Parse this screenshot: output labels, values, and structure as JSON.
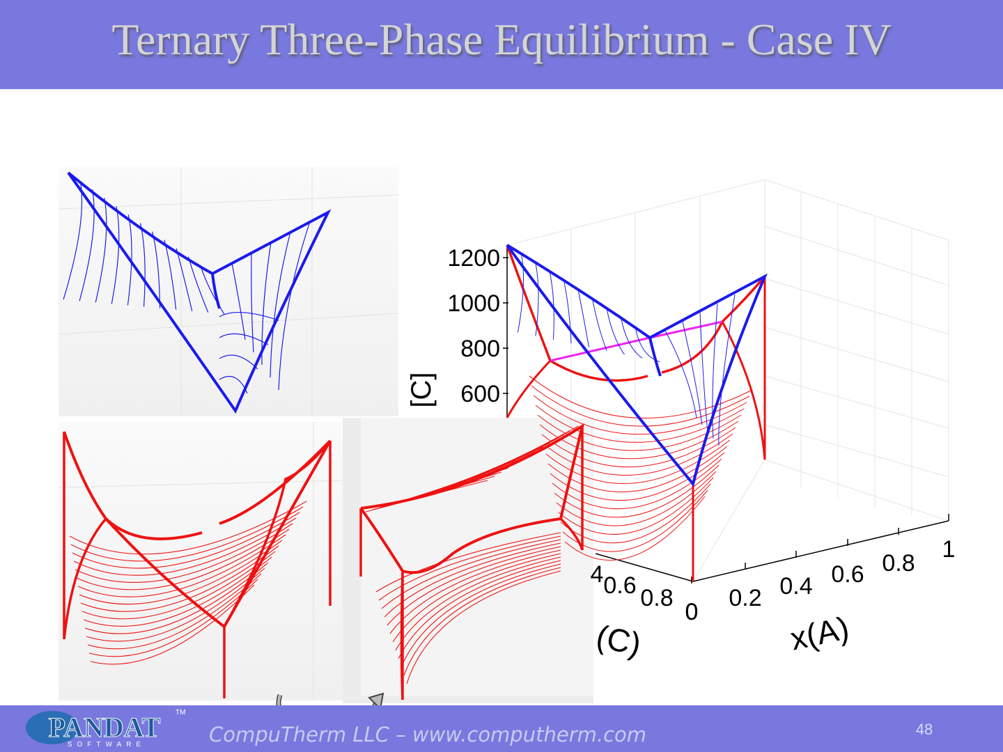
{
  "header": {
    "title": "Ternary Three-Phase Equilibrium - Case IV"
  },
  "figure": {
    "y_axis": {
      "label": "[C]",
      "ticks": [
        "1200",
        "1000",
        "800",
        "600"
      ]
    },
    "x_a_axis": {
      "label": "x(A)",
      "ticks": [
        "0",
        "0.2",
        "0.4",
        "0.6",
        "0.8",
        "1"
      ]
    },
    "x_c_axis": {
      "label": "(C)",
      "ticks": [
        "4",
        "0.6",
        "0.8",
        "0"
      ]
    }
  },
  "footer": {
    "logo": "PANDAT",
    "logo_sub": "SOFTWARE",
    "trademark": "TM",
    "text": "CompuTherm LLC – www.computherm.com",
    "page": "48"
  }
}
